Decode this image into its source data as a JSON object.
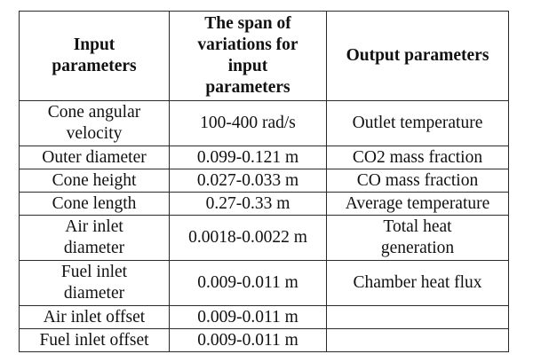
{
  "table": {
    "headers": {
      "col1": [
        "Input",
        "parameters"
      ],
      "col2": [
        "The span of",
        "variations for",
        "input",
        "parameters"
      ],
      "col3": [
        "Output parameters"
      ]
    },
    "rows": [
      {
        "input": [
          "Cone angular",
          "velocity"
        ],
        "span": "100-400 rad/s",
        "output": [
          "Outlet temperature"
        ],
        "size": "h2"
      },
      {
        "input": [
          "Outer diameter"
        ],
        "span": "0.099-0.121 m",
        "output": [
          "CO2 mass fraction"
        ],
        "size": "h1"
      },
      {
        "input": [
          "Cone height"
        ],
        "span": "0.027-0.033 m",
        "output": [
          "CO mass fraction"
        ],
        "size": "h1"
      },
      {
        "input": [
          "Cone length"
        ],
        "span": "0.27-0.33 m",
        "output": [
          "Average temperature"
        ],
        "size": "h1"
      },
      {
        "input": [
          "Air inlet",
          "diameter"
        ],
        "span": "0.0018-0.0022 m",
        "output": [
          "Total heat",
          "generation"
        ],
        "size": "h2"
      },
      {
        "input": [
          "Fuel inlet",
          "diameter"
        ],
        "span": "0.009-0.011 m",
        "output": [
          "Chamber heat flux"
        ],
        "size": "h2"
      },
      {
        "input": [
          "Air inlet offset"
        ],
        "span": "0.009-0.011 m",
        "output": [],
        "size": "h1"
      },
      {
        "input": [
          "Fuel inlet offset"
        ],
        "span": "0.009-0.011 m",
        "output": [],
        "size": "h1"
      }
    ]
  },
  "colors": {
    "border": "#2a2a2a",
    "text": "#111111",
    "background": "#ffffff"
  }
}
